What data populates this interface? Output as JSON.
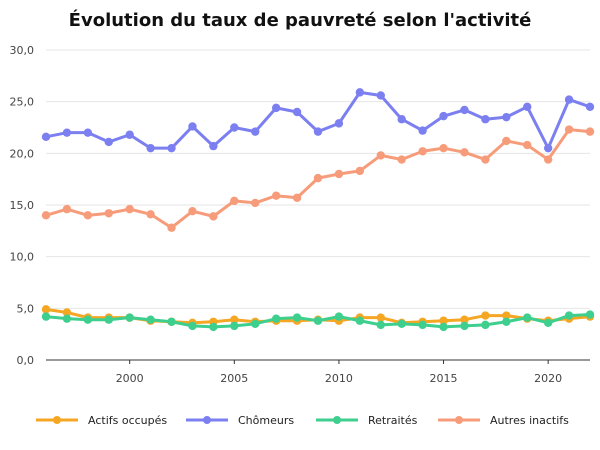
{
  "chart_data": {
    "type": "line",
    "title": "Évolution du taux de pauvreté selon l'activité",
    "xlabel": "",
    "ylabel": "",
    "xlim": [
      1996,
      2022
    ],
    "ylim": [
      0,
      30
    ],
    "x_ticks": [
      2000,
      2005,
      2010,
      2015,
      2020
    ],
    "y_ticks": [
      {
        "value": 0,
        "label": "0,0"
      },
      {
        "value": 5,
        "label": "5,0"
      },
      {
        "value": 10,
        "label": "10,0"
      },
      {
        "value": 15,
        "label": "15,0"
      },
      {
        "value": 20,
        "label": "20,0"
      },
      {
        "value": 25,
        "label": "25,0"
      },
      {
        "value": 30,
        "label": "30,0"
      }
    ],
    "grid": "horizontal",
    "legend_position": "bottom",
    "x": [
      1996,
      1997,
      1998,
      1999,
      2000,
      2001,
      2002,
      2003,
      2004,
      2005,
      2006,
      2007,
      2008,
      2009,
      2010,
      2011,
      2012,
      2013,
      2014,
      2015,
      2016,
      2017,
      2018,
      2019,
      2020,
      2021,
      2022
    ],
    "series": [
      {
        "name": "Actifs occupés",
        "color": "#f5a623",
        "values": [
          4.9,
          4.6,
          4.1,
          4.1,
          4.1,
          3.8,
          3.7,
          3.6,
          3.7,
          3.9,
          3.7,
          3.8,
          3.8,
          3.9,
          3.8,
          4.1,
          4.1,
          3.6,
          3.7,
          3.8,
          3.9,
          4.3,
          4.3,
          4.0,
          3.8,
          4.0,
          4.2
        ]
      },
      {
        "name": "Chômeurs",
        "color": "#7b7ff0",
        "values": [
          21.6,
          22.0,
          22.0,
          21.1,
          21.8,
          20.5,
          20.5,
          22.6,
          20.7,
          22.5,
          22.1,
          24.4,
          24.0,
          22.1,
          22.9,
          25.9,
          25.6,
          23.3,
          22.2,
          23.6,
          24.2,
          23.3,
          23.5,
          24.5,
          20.5,
          25.2,
          24.5
        ]
      },
      {
        "name": "Retraités",
        "color": "#3ecf8e",
        "values": [
          4.2,
          4.0,
          3.9,
          3.9,
          4.1,
          3.9,
          3.7,
          3.3,
          3.2,
          3.3,
          3.5,
          4.0,
          4.1,
          3.8,
          4.2,
          3.8,
          3.4,
          3.5,
          3.4,
          3.2,
          3.3,
          3.4,
          3.7,
          4.1,
          3.6,
          4.3,
          4.4
        ]
      },
      {
        "name": "Autres inactifs",
        "color": "#f79c7a",
        "values": [
          14.0,
          14.6,
          14.0,
          14.2,
          14.6,
          14.1,
          12.8,
          14.4,
          13.9,
          15.4,
          15.2,
          15.9,
          15.7,
          17.6,
          18.0,
          18.3,
          19.8,
          19.4,
          20.2,
          20.5,
          20.1,
          19.4,
          21.2,
          20.8,
          19.4,
          22.3,
          22.1
        ]
      }
    ]
  }
}
